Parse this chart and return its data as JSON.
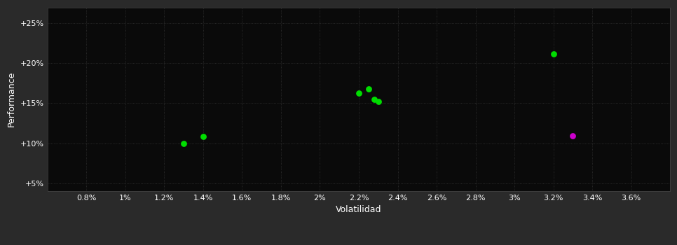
{
  "title": "",
  "xlabel": "Volatilidad",
  "ylabel": "Performance",
  "fig_bg_color": "#2a2a2a",
  "plot_bg_color": "#0a0a0a",
  "grid_color": "#333333",
  "text_color": "#ffffff",
  "xlim": [
    0.006,
    0.038
  ],
  "ylim": [
    0.04,
    0.27
  ],
  "xticks": [
    0.008,
    0.01,
    0.012,
    0.014,
    0.016,
    0.018,
    0.02,
    0.022,
    0.024,
    0.026,
    0.028,
    0.03,
    0.032,
    0.034,
    0.036
  ],
  "xtick_labels": [
    "0.8%",
    "1%",
    "1.2%",
    "1.4%",
    "1.6%",
    "1.8%",
    "2%",
    "2.2%",
    "2.4%",
    "2.6%",
    "2.8%",
    "3%",
    "3.2%",
    "3.4%",
    "3.6%"
  ],
  "yticks": [
    0.05,
    0.1,
    0.15,
    0.2,
    0.25
  ],
  "ytick_labels": [
    "+5%",
    "+10%",
    "+15%",
    "+20%",
    "+25%"
  ],
  "green_points": [
    [
      0.013,
      0.1
    ],
    [
      0.014,
      0.108
    ],
    [
      0.022,
      0.163
    ],
    [
      0.0225,
      0.168
    ],
    [
      0.0228,
      0.155
    ],
    [
      0.023,
      0.152
    ],
    [
      0.032,
      0.212
    ]
  ],
  "magenta_points": [
    [
      0.033,
      0.109
    ]
  ],
  "green_color": "#00dd00",
  "magenta_color": "#cc00cc",
  "marker_size": 40,
  "figsize": [
    9.66,
    3.5
  ],
  "dpi": 100
}
